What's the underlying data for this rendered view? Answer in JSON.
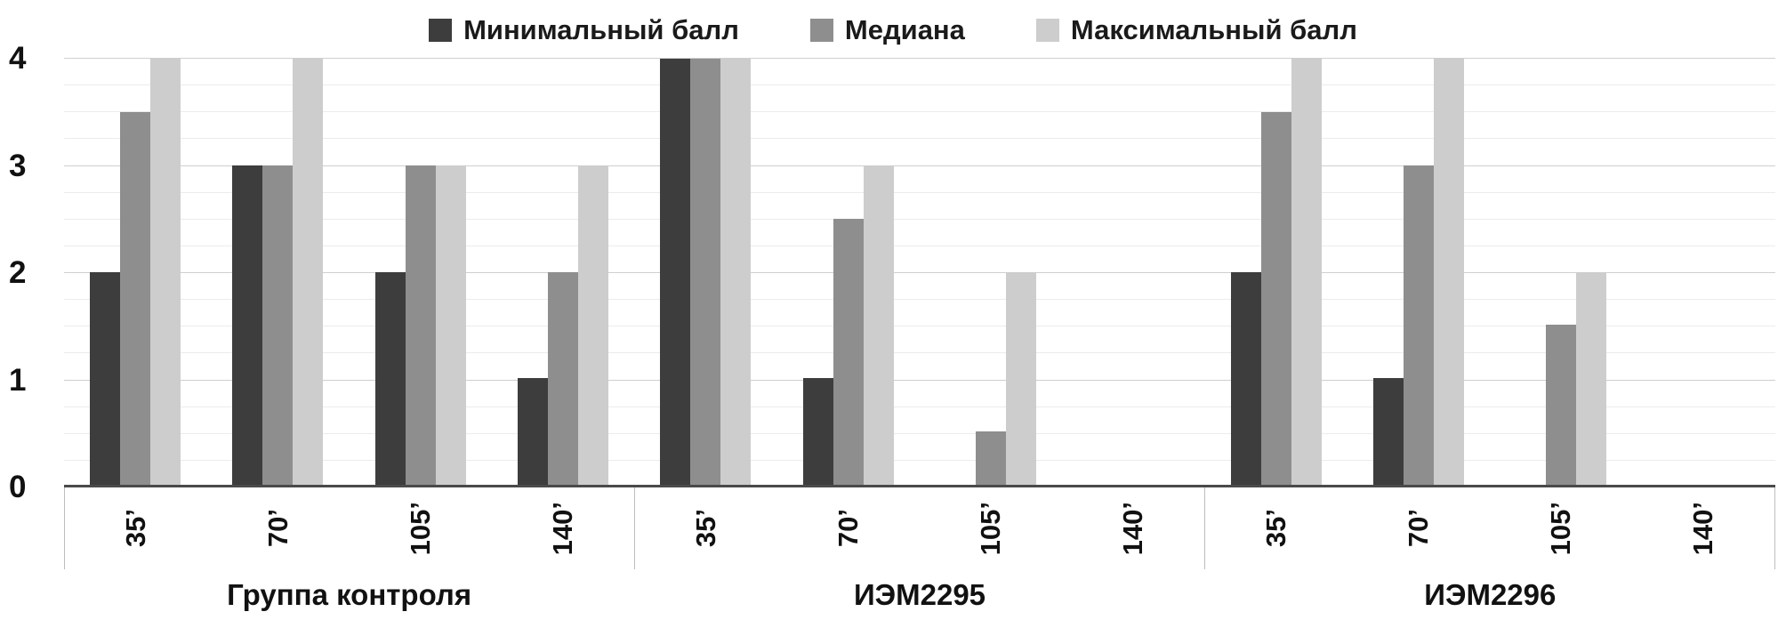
{
  "legend": {
    "items": [
      {
        "label": "Минимальный балл",
        "color": "#3d3d3d"
      },
      {
        "label": "Медиана",
        "color": "#8e8e8e"
      },
      {
        "label": "Максимальный балл",
        "color": "#cdcdcd"
      }
    ]
  },
  "chart_data": {
    "type": "bar",
    "title": "",
    "ylabel": "",
    "xlabel": "",
    "ylim": [
      0,
      4
    ],
    "yticks": [
      0,
      1,
      2,
      3,
      4
    ],
    "minor_grid_step": 0.25,
    "legend_position": "top",
    "series_names": [
      "Минимальный балл",
      "Медиана",
      "Максимальный балл"
    ],
    "groups": [
      {
        "label": "Группа контроля",
        "timepoints": [
          "35’",
          "70’",
          "105’",
          "140’"
        ],
        "series": [
          {
            "name": "Минимальный балл",
            "values": [
              2,
              3,
              2,
              1
            ]
          },
          {
            "name": "Медиана",
            "values": [
              3.5,
              3,
              3,
              2
            ]
          },
          {
            "name": "Максимальный балл",
            "values": [
              4,
              4,
              3,
              3
            ]
          }
        ]
      },
      {
        "label": "ИЭМ2295",
        "timepoints": [
          "35’",
          "70’",
          "105’",
          "140’"
        ],
        "series": [
          {
            "name": "Минимальный балл",
            "values": [
              4,
              1,
              0,
              0
            ]
          },
          {
            "name": "Медиана",
            "values": [
              4,
              2.5,
              0.5,
              0
            ]
          },
          {
            "name": "Максимальный балл",
            "values": [
              4,
              3,
              2,
              0
            ]
          }
        ]
      },
      {
        "label": "ИЭМ2296",
        "timepoints": [
          "35’",
          "70’",
          "105’",
          "140’"
        ],
        "series": [
          {
            "name": "Минимальный балл",
            "values": [
              2,
              1,
              0,
              0
            ]
          },
          {
            "name": "Медиана",
            "values": [
              3.5,
              3,
              1.5,
              0
            ]
          },
          {
            "name": "Максимальный балл",
            "values": [
              4,
              4,
              2,
              0
            ]
          }
        ]
      }
    ]
  }
}
